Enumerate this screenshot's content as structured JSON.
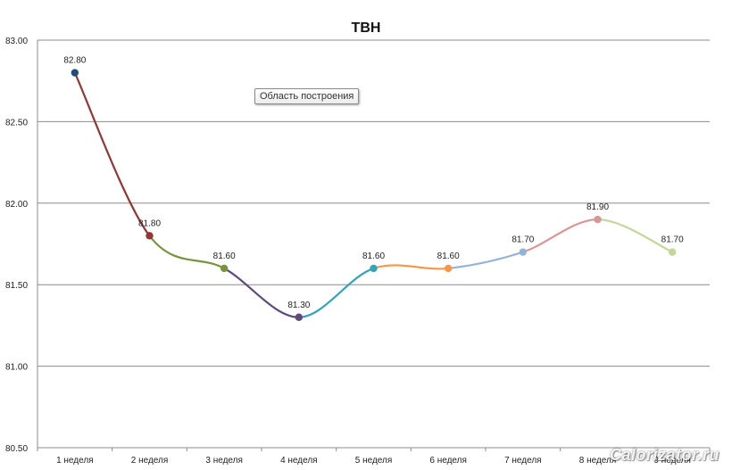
{
  "chart_data": {
    "type": "line",
    "title": "ТВН",
    "categories": [
      "1 неделя",
      "2 неделя",
      "3 неделя",
      "4 неделя",
      "5 неделя",
      "6 неделя",
      "7 неделя",
      "8 неделя",
      "9 неделя"
    ],
    "values": [
      82.8,
      81.8,
      81.6,
      81.3,
      81.6,
      81.6,
      81.7,
      81.9,
      81.7
    ],
    "data_labels": [
      "82.80",
      "81.80",
      "81.60",
      "81.30",
      "81.60",
      "81.60",
      "81.70",
      "81.90",
      "81.70"
    ],
    "y_ticks": [
      "80.50",
      "81.00",
      "81.50",
      "82.00",
      "82.50",
      "83.00"
    ],
    "ylim": [
      80.5,
      83.0
    ],
    "grid": true,
    "legend": "none",
    "point_colors": [
      "#1f4e79",
      "#943634",
      "#77933c",
      "#604a7b",
      "#31a4b8",
      "#f79646",
      "#95b3d7",
      "#d99694",
      "#c3d69b"
    ],
    "segment_colors": [
      "#943634",
      "#77933c",
      "#604a7b",
      "#31a4b8",
      "#f79646",
      "#95b3d7",
      "#d99694",
      "#c3d69b"
    ]
  },
  "tooltip": "Область построения",
  "watermark": "Calorizator.ru"
}
